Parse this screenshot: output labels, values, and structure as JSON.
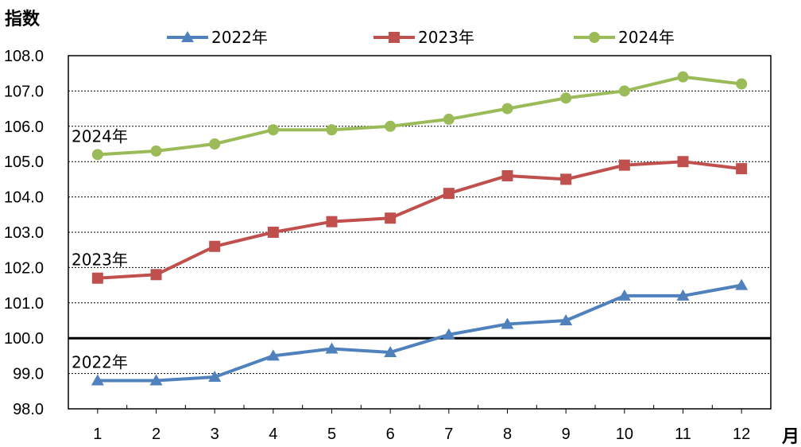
{
  "chart_data": {
    "type": "line",
    "ylabel": "指数",
    "xlabel": "月",
    "categories": [
      "1",
      "2",
      "3",
      "4",
      "5",
      "6",
      "7",
      "8",
      "9",
      "10",
      "11",
      "12"
    ],
    "ylim": [
      98.0,
      108.0
    ],
    "yticks": [
      98.0,
      99.0,
      100.0,
      101.0,
      102.0,
      103.0,
      104.0,
      105.0,
      106.0,
      107.0,
      108.0
    ],
    "reference_line": 100.0,
    "grid": "horizontal-dotted",
    "legend_position": "top",
    "series": [
      {
        "name": "2022年",
        "label": "2022年",
        "color": "#4F81BD",
        "marker": "triangle",
        "values": [
          98.8,
          98.8,
          98.9,
          99.5,
          99.7,
          99.6,
          100.1,
          100.4,
          100.5,
          101.2,
          101.2,
          101.5
        ]
      },
      {
        "name": "2023年",
        "label": "2023年",
        "color": "#C0504D",
        "marker": "square",
        "values": [
          101.7,
          101.8,
          102.6,
          103.0,
          103.3,
          103.4,
          104.1,
          104.6,
          104.5,
          104.9,
          105.0,
          104.8
        ]
      },
      {
        "name": "2024年",
        "label": "2024年",
        "color": "#9BBB59",
        "marker": "circle",
        "values": [
          105.2,
          105.3,
          105.5,
          105.9,
          105.9,
          106.0,
          106.2,
          106.5,
          106.8,
          107.0,
          107.4,
          107.2
        ]
      }
    ]
  }
}
